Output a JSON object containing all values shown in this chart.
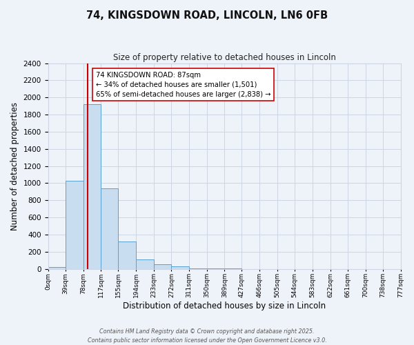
{
  "title_line1": "74, KINGSDOWN ROAD, LINCOLN, LN6 0FB",
  "title_line2": "Size of property relative to detached houses in Lincoln",
  "xlabel": "Distribution of detached houses by size in Lincoln",
  "ylabel": "Number of detached properties",
  "bar_edges": [
    0,
    39,
    78,
    117,
    155,
    194,
    233,
    272,
    311,
    350,
    389,
    427,
    466,
    505,
    544,
    583,
    622,
    661,
    700,
    738,
    777
  ],
  "bar_heights": [
    20,
    1030,
    1920,
    940,
    315,
    105,
    50,
    30,
    5,
    2,
    1,
    0,
    0,
    0,
    0,
    0,
    0,
    0,
    0,
    0
  ],
  "bar_color": "#c9ddf0",
  "bar_edge_color": "#5a9fd4",
  "vline_color": "#cc0000",
  "vline_x": 87,
  "ylim": [
    0,
    2400
  ],
  "yticks": [
    0,
    200,
    400,
    600,
    800,
    1000,
    1200,
    1400,
    1600,
    1800,
    2000,
    2200,
    2400
  ],
  "xtick_labels": [
    "0sqm",
    "39sqm",
    "78sqm",
    "117sqm",
    "155sqm",
    "194sqm",
    "233sqm",
    "272sqm",
    "311sqm",
    "350sqm",
    "389sqm",
    "427sqm",
    "466sqm",
    "505sqm",
    "544sqm",
    "583sqm",
    "622sqm",
    "661sqm",
    "700sqm",
    "738sqm",
    "777sqm"
  ],
  "annotation_title": "74 KINGSDOWN ROAD: 87sqm",
  "annotation_line2": "← 34% of detached houses are smaller (1,501)",
  "annotation_line3": "65% of semi-detached houses are larger (2,838) →",
  "grid_color": "#cdd5e5",
  "background_color": "#eef2f9",
  "footer_line1": "Contains HM Land Registry data © Crown copyright and database right 2025.",
  "footer_line2": "Contains public sector information licensed under the Open Government Licence v3.0."
}
